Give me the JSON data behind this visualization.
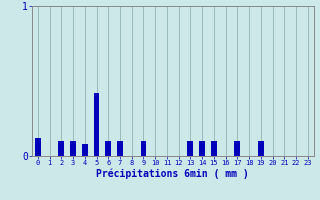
{
  "title": "",
  "xlabel": "Précipitations 6min ( mm )",
  "ylabel": "",
  "background_color": "#cce8e8",
  "bar_color": "#0000bb",
  "grid_color": "#99bbbb",
  "axis_color": "#888888",
  "text_color": "#0000bb",
  "hours": [
    0,
    1,
    2,
    3,
    4,
    5,
    6,
    7,
    8,
    9,
    10,
    11,
    12,
    13,
    14,
    15,
    16,
    17,
    18,
    19,
    20,
    21,
    22,
    23
  ],
  "values": [
    0.12,
    0.0,
    0.1,
    0.1,
    0.08,
    0.42,
    0.1,
    0.1,
    0.0,
    0.1,
    0.0,
    0.0,
    0.0,
    0.1,
    0.1,
    0.1,
    0.0,
    0.1,
    0.0,
    0.1,
    0.0,
    0.0,
    0.0,
    0.0
  ],
  "ylim": [
    0,
    1.0
  ],
  "yticks": [
    0,
    1
  ],
  "figsize": [
    3.2,
    2.0
  ],
  "dpi": 100,
  "bar_width": 0.5,
  "xlabel_fontsize": 7,
  "xtick_fontsize": 5,
  "ytick_fontsize": 7
}
